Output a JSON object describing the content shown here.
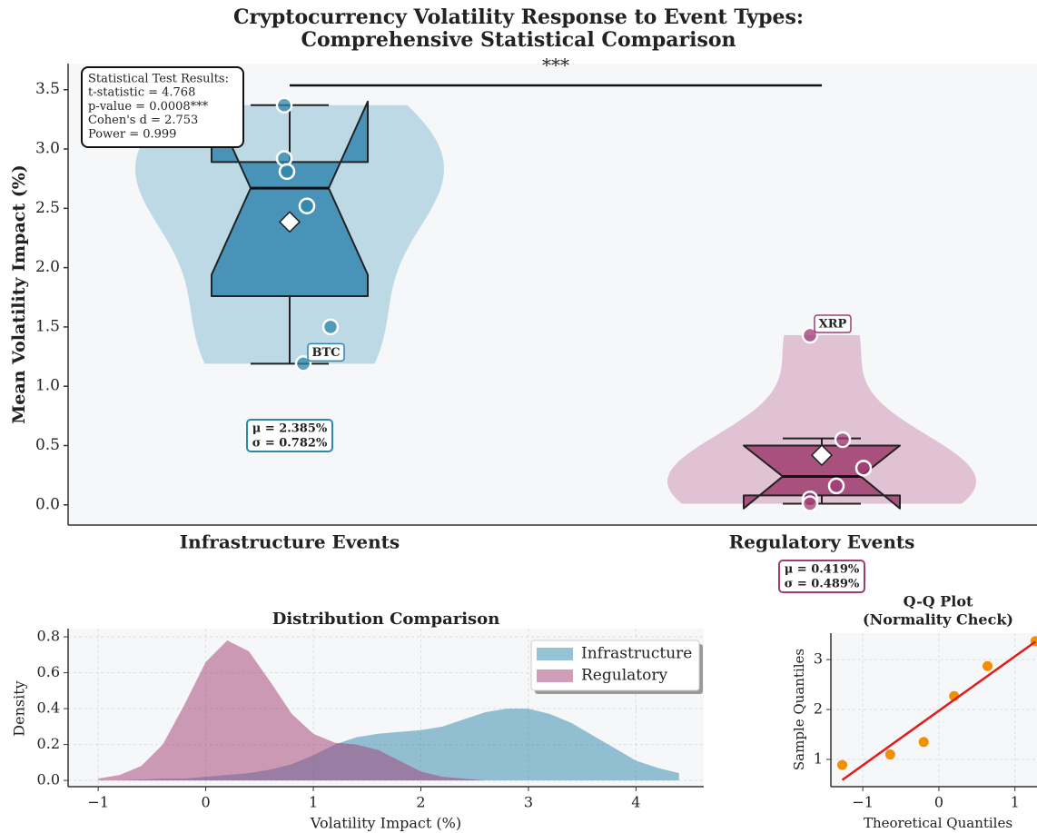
{
  "chart_data": [
    {
      "type": "violin",
      "title": [
        "Cryptocurrency Volatility Response to Event Types:",
        "Comprehensive Statistical Comparison"
      ],
      "ylabel": "Mean Volatility Impact (%)",
      "categories": [
        "Infrastructure Events",
        "Regulatory Events"
      ],
      "ylim": [
        -0.17,
        3.72
      ],
      "yticks": [
        {
          "value": 0,
          "label": "0.0"
        },
        {
          "value": 0.5,
          "label": "0.5"
        },
        {
          "value": 1,
          "label": "1.0"
        },
        {
          "value": 1.5,
          "label": "1.5"
        },
        {
          "value": 2,
          "label": "2.0"
        },
        {
          "value": 2.5,
          "label": "2.5"
        },
        {
          "value": 3,
          "label": "3.0"
        },
        {
          "value": 3.5,
          "label": "3.5"
        }
      ],
      "series": [
        {
          "color": "#2e86ab",
          "violin_color": "#b9d7e4",
          "box_color": "#4a93b8",
          "values": [
            3.37,
            2.92,
            2.81,
            2.52,
            1.5,
            1.19
          ],
          "point_labels": [
            null,
            null,
            null,
            null,
            null,
            "BTC"
          ],
          "box": {
            "whislo": 1.19,
            "q1": 1.76,
            "notch_lo": 1.94,
            "med": 2.67,
            "notch_hi": 3.4,
            "q3": 2.89,
            "whishi": 3.37
          },
          "mean": 2.385,
          "stats_label": [
            "μ = 2.385%",
            "σ = 0.782%"
          ]
        },
        {
          "color": "#a23b72",
          "violin_color": "#dfbfd2",
          "box_color": "#a8517f",
          "values": [
            1.43,
            0.55,
            0.31,
            0.16,
            0.05,
            0.01
          ],
          "point_labels": [
            "XRP",
            null,
            null,
            null,
            null,
            null
          ],
          "box": {
            "whislo": 0.01,
            "q1": 0.08,
            "notch_lo": -0.03,
            "med": 0.24,
            "notch_hi": 0.5,
            "q3": 0.5,
            "whishi": 0.56
          },
          "mean": 0.419,
          "stats_label": [
            "μ = 0.419%",
            "σ = 0.489%"
          ]
        }
      ],
      "significance": "***",
      "stats_box": [
        "Statistical Test Results:",
        "t-statistic = 4.768",
        "p-value = 0.0008***",
        "Cohen's d = 2.753",
        "Power = 0.999"
      ],
      "grid": false
    },
    {
      "type": "area",
      "title": "Distribution Comparison",
      "xlabel": "Volatility Impact (%)",
      "ylabel": "Density",
      "x": [
        -1,
        -0.8,
        -0.6,
        -0.4,
        -0.2,
        0,
        0.2,
        0.4,
        0.6,
        0.8,
        1.0,
        1.2,
        1.4,
        1.6,
        1.8,
        2.0,
        2.2,
        2.4,
        2.6,
        2.8,
        3.0,
        3.2,
        3.4,
        3.6,
        3.8,
        4.0,
        4.2,
        4.4
      ],
      "series": [
        {
          "name": "Infrastructure",
          "color": "#2e86ab",
          "values": [
            0,
            0,
            0.005,
            0.01,
            0.01,
            0.02,
            0.03,
            0.04,
            0.06,
            0.09,
            0.14,
            0.2,
            0.24,
            0.26,
            0.27,
            0.28,
            0.3,
            0.34,
            0.38,
            0.4,
            0.4,
            0.37,
            0.32,
            0.25,
            0.18,
            0.11,
            0.07,
            0.04
          ]
        },
        {
          "name": "Regulatory",
          "color": "#a23b72",
          "values": [
            0.01,
            0.03,
            0.08,
            0.2,
            0.42,
            0.66,
            0.78,
            0.72,
            0.55,
            0.37,
            0.26,
            0.21,
            0.2,
            0.17,
            0.11,
            0.05,
            0.02,
            0.01,
            0,
            0,
            0,
            0,
            0,
            0,
            0,
            0,
            0,
            0
          ]
        }
      ],
      "xlim": [
        -1.28,
        4.63
      ],
      "xticks": [
        {
          "value": -1,
          "label": "−1"
        },
        0,
        1,
        2,
        3,
        4
      ],
      "ylim": [
        -0.035,
        0.846
      ],
      "yticks": [
        {
          "value": 0,
          "label": "0.0"
        },
        {
          "value": 0.2,
          "label": "0.2"
        },
        {
          "value": 0.4,
          "label": "0.4"
        },
        {
          "value": 0.6,
          "label": "0.6"
        },
        {
          "value": 0.8,
          "label": "0.8"
        }
      ],
      "grid": true,
      "legend": "upper right"
    },
    {
      "type": "qq",
      "title": [
        "Q-Q Plot",
        "(Normality Check)"
      ],
      "xlabel": "Theoretical Quantiles",
      "ylabel": "Sample Quantiles",
      "color": "#f18f01",
      "x": [
        -1.27,
        -0.64,
        -0.2,
        0.2,
        0.64,
        1.27
      ],
      "values": [
        0.89,
        1.1,
        1.35,
        2.27,
        2.87,
        3.37
      ],
      "fit_line": {
        "color": "#e41a1c",
        "x": [
          -1.27,
          1.27
        ],
        "values": [
          0.59,
          3.36
        ]
      },
      "xlim": [
        -1.42,
        1.29
      ],
      "xticks": [
        {
          "value": -1,
          "label": "−1"
        },
        0,
        1
      ],
      "ylim": [
        0.455,
        3.53
      ],
      "yticks": [
        1,
        2,
        3
      ],
      "grid": true
    }
  ]
}
